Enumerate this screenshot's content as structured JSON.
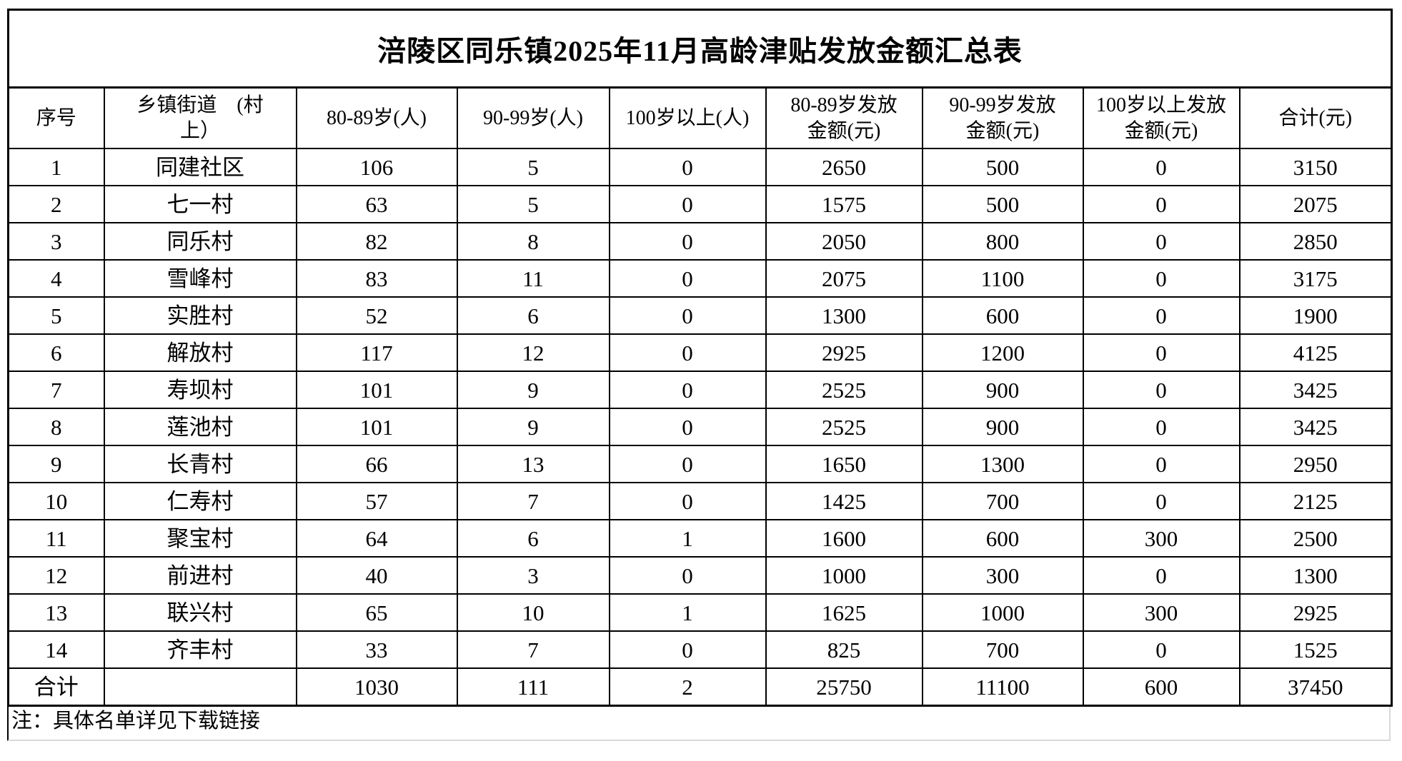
{
  "title": "涪陵区同乐镇2025年11月高龄津贴发放金额汇总表",
  "note": "注：具体名单详见下载链接",
  "table": {
    "headers": [
      "序号",
      "乡镇街道　(村\n上）",
      "80-89岁(人)",
      "90-99岁(人)",
      "100岁以上(人)",
      "80-89岁发放\n金额(元)",
      "90-99岁发放\n金额(元)",
      "100岁以上发放\n金额(元)",
      "合计(元)"
    ],
    "rows": [
      [
        "1",
        "同建社区",
        "106",
        "5",
        "0",
        "2650",
        "500",
        "0",
        "3150"
      ],
      [
        "2",
        "七一村",
        "63",
        "5",
        "0",
        "1575",
        "500",
        "0",
        "2075"
      ],
      [
        "3",
        "同乐村",
        "82",
        "8",
        "0",
        "2050",
        "800",
        "0",
        "2850"
      ],
      [
        "4",
        "雪峰村",
        "83",
        "11",
        "0",
        "2075",
        "1100",
        "0",
        "3175"
      ],
      [
        "5",
        "实胜村",
        "52",
        "6",
        "0",
        "1300",
        "600",
        "0",
        "1900"
      ],
      [
        "6",
        "解放村",
        "117",
        "12",
        "0",
        "2925",
        "1200",
        "0",
        "4125"
      ],
      [
        "7",
        "寿坝村",
        "101",
        "9",
        "0",
        "2525",
        "900",
        "0",
        "3425"
      ],
      [
        "8",
        "莲池村",
        "101",
        "9",
        "0",
        "2525",
        "900",
        "0",
        "3425"
      ],
      [
        "9",
        "长青村",
        "66",
        "13",
        "0",
        "1650",
        "1300",
        "0",
        "2950"
      ],
      [
        "10",
        "仁寿村",
        "57",
        "7",
        "0",
        "1425",
        "700",
        "0",
        "2125"
      ],
      [
        "11",
        "聚宝村",
        "64",
        "6",
        "1",
        "1600",
        "600",
        "300",
        "2500"
      ],
      [
        "12",
        "前进村",
        "40",
        "3",
        "0",
        "1000",
        "300",
        "0",
        "1300"
      ],
      [
        "13",
        "联兴村",
        "65",
        "10",
        "1",
        "1625",
        "1000",
        "300",
        "2925"
      ],
      [
        "14",
        "齐丰村",
        "33",
        "7",
        "0",
        "825",
        "700",
        "0",
        "1525"
      ]
    ],
    "total_row": [
      "合计",
      "",
      "1030",
      "111",
      "2",
      "25750",
      "11100",
      "600",
      "37450"
    ]
  }
}
